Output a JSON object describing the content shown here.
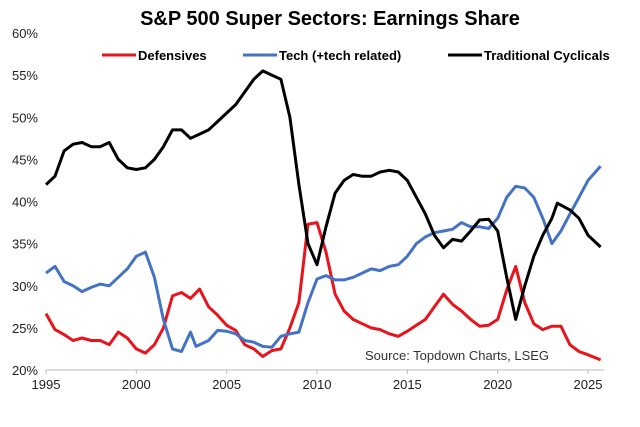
{
  "chart_data": {
    "type": "line",
    "title": "S&P 500 Super Sectors: Earnings Share",
    "source": "Source: Topdown Charts, LSEG",
    "xlabel": "",
    "ylabel": "",
    "xlim": [
      1995,
      2025.9
    ],
    "ylim": [
      20,
      60
    ],
    "x_ticks": [
      1995,
      2000,
      2005,
      2010,
      2015,
      2020,
      2025
    ],
    "x_tick_labels": [
      "1995",
      "2000",
      "2005",
      "2010",
      "2015",
      "2020",
      "2025"
    ],
    "y_ticks": [
      20,
      25,
      30,
      35,
      40,
      45,
      50,
      55,
      60
    ],
    "y_tick_labels": [
      "20%",
      "25%",
      "30%",
      "35%",
      "40%",
      "45%",
      "50%",
      "55%",
      "60%"
    ],
    "grid": false,
    "legend_position": "top",
    "series": [
      {
        "name": "Defensives",
        "color": "#e8141b",
        "x": [
          1995,
          1995.5,
          1996,
          1996.5,
          1997,
          1997.5,
          1998,
          1998.5,
          1999,
          1999.5,
          2000,
          2000.5,
          2001,
          2001.5,
          2002,
          2002.5,
          2003,
          2003.5,
          2004,
          2004.5,
          2005,
          2005.5,
          2006,
          2006.5,
          2007,
          2007.5,
          2008,
          2008.5,
          2009,
          2009.5,
          2010,
          2010.5,
          2011,
          2011.5,
          2012,
          2012.5,
          2013,
          2013.5,
          2014,
          2014.5,
          2015,
          2015.5,
          2016,
          2016.5,
          2017,
          2017.5,
          2018,
          2018.5,
          2019,
          2019.5,
          2020,
          2020.5,
          2021,
          2021.5,
          2022,
          2022.5,
          2023,
          2023.5,
          2024,
          2024.5,
          2025,
          2025.7
        ],
        "values": [
          26.7,
          24.8,
          24.2,
          23.5,
          23.8,
          23.5,
          23.5,
          23,
          24.5,
          23.8,
          22.5,
          22,
          23,
          25,
          28.8,
          29.2,
          28.5,
          29.6,
          27.5,
          26.5,
          25.3,
          24.7,
          23,
          22.5,
          21.6,
          22.3,
          22.5,
          25,
          28,
          37.3,
          37.5,
          34,
          29,
          27,
          26,
          25.5,
          25,
          24.8,
          24.3,
          24,
          24.6,
          25.3,
          26,
          27.5,
          29,
          27.8,
          27,
          26,
          25.2,
          25.3,
          26,
          29.5,
          32.3,
          28,
          25.5,
          24.8,
          25.2,
          25.2,
          23,
          22.2,
          21.8,
          21.2
        ]
      },
      {
        "name": "Tech (+tech related)",
        "color": "#4472c4",
        "x": [
          1995,
          1995.5,
          1996,
          1996.5,
          1997,
          1997.5,
          1998,
          1998.5,
          1999,
          1999.5,
          2000,
          2000.5,
          2001,
          2001.5,
          2002,
          2002.5,
          2003,
          2003.3,
          2004,
          2004.5,
          2005,
          2005.5,
          2006,
          2006.5,
          2007,
          2007.5,
          2008,
          2008.5,
          2009,
          2009.5,
          2010,
          2010.5,
          2011,
          2011.5,
          2012,
          2012.5,
          2013,
          2013.5,
          2014,
          2014.5,
          2015,
          2015.5,
          2016,
          2016.5,
          2017,
          2017.5,
          2018,
          2018.5,
          2019,
          2019.5,
          2020,
          2020.5,
          2021,
          2021.5,
          2022,
          2022.5,
          2023,
          2023.5,
          2024,
          2024.5,
          2025,
          2025.7
        ],
        "values": [
          31.5,
          32.3,
          30.5,
          30,
          29.3,
          29.8,
          30.2,
          30,
          31,
          32,
          33.5,
          34,
          31,
          26,
          22.5,
          22.2,
          24.5,
          22.8,
          23.5,
          24.7,
          24.6,
          24.3,
          23.5,
          23.3,
          22.8,
          22.7,
          24,
          24.3,
          24.5,
          28,
          30.8,
          31.2,
          30.7,
          30.7,
          31,
          31.5,
          32,
          31.8,
          32.3,
          32.5,
          33.5,
          35,
          35.8,
          36.3,
          36.5,
          36.7,
          37.5,
          37,
          37,
          36.8,
          38,
          40.5,
          41.8,
          41.6,
          40.5,
          38,
          35,
          36.5,
          38.5,
          40.5,
          42.5,
          44.2
        ]
      },
      {
        "name": "Traditional Cyclicals",
        "color": "#000000",
        "x": [
          1995,
          1995.5,
          1996,
          1996.5,
          1997,
          1997.5,
          1998,
          1998.5,
          1999,
          1999.5,
          2000,
          2000.5,
          2001,
          2001.5,
          2002,
          2002.5,
          2003,
          2003.5,
          2004,
          2004.5,
          2005,
          2005.5,
          2006,
          2006.5,
          2007,
          2007.5,
          2008,
          2008.5,
          2009,
          2009.5,
          2010,
          2010.5,
          2011,
          2011.5,
          2012,
          2012.5,
          2013,
          2013.5,
          2014,
          2014.5,
          2015,
          2015.5,
          2016,
          2016.5,
          2017,
          2017.5,
          2018,
          2018.5,
          2019,
          2019.5,
          2020,
          2020.5,
          2021,
          2021.5,
          2022,
          2022.5,
          2023,
          2023.3,
          2024,
          2024.5,
          2025,
          2025.7
        ],
        "values": [
          42,
          43,
          46,
          46.8,
          47,
          46.5,
          46.5,
          47,
          45,
          44,
          43.8,
          44,
          45,
          46.5,
          48.5,
          48.5,
          47.5,
          48,
          48.5,
          49.5,
          50.5,
          51.5,
          53,
          54.5,
          55.5,
          55,
          54.5,
          50,
          42,
          35,
          32.5,
          37,
          41,
          42.5,
          43.2,
          43,
          43,
          43.5,
          43.7,
          43.5,
          42.5,
          40.5,
          38.5,
          36,
          34.5,
          35.5,
          35.3,
          36.5,
          37.8,
          37.9,
          36.5,
          31,
          26,
          30,
          33.5,
          36,
          38,
          39.8,
          39,
          38,
          36,
          34.6
        ]
      }
    ]
  }
}
